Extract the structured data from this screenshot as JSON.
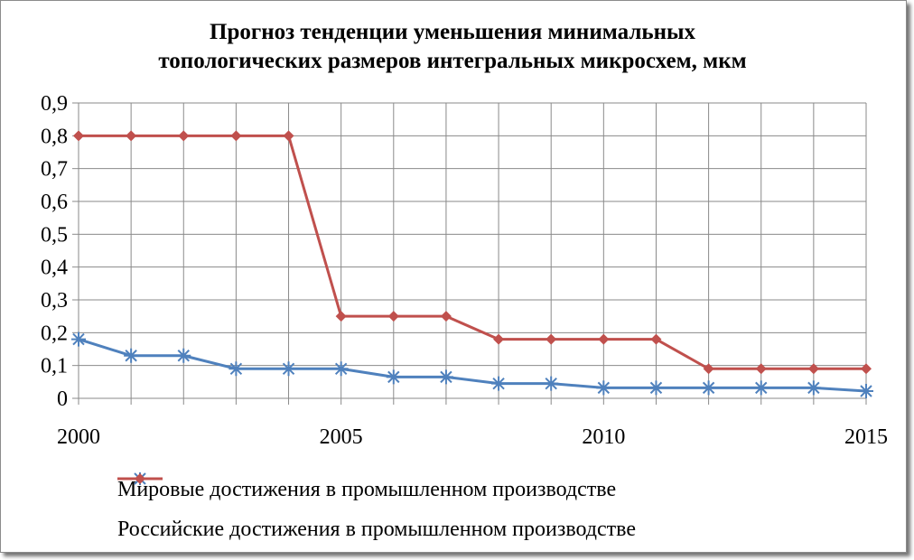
{
  "chart_data": {
    "type": "line",
    "title_lines": [
      "Прогноз тенденции уменьшения минимальных",
      "топологических размеров интегральных микросхем, мкм"
    ],
    "x": [
      2000,
      2001,
      2002,
      2003,
      2004,
      2005,
      2006,
      2007,
      2008,
      2009,
      2010,
      2011,
      2012,
      2013,
      2014,
      2015
    ],
    "x_tick_labels": [
      "2000",
      "2005",
      "2010",
      "2015"
    ],
    "y_tick_labels": [
      "0",
      "0,1",
      "0,2",
      "0,3",
      "0,4",
      "0,5",
      "0,6",
      "0,7",
      "0,8",
      "0,9"
    ],
    "ylim": [
      0,
      0.9
    ],
    "xlim": [
      2000,
      2015
    ],
    "grid": true,
    "legend_position": "bottom",
    "series": [
      {
        "name": "Мировые достижения в промышленном производстве",
        "color": "#4f81bd",
        "marker": "asterisk",
        "values": [
          0.18,
          0.13,
          0.13,
          0.09,
          0.09,
          0.09,
          0.065,
          0.065,
          0.045,
          0.045,
          0.032,
          0.032,
          0.032,
          0.032,
          0.032,
          0.022
        ]
      },
      {
        "name": "Российские достижения в промышленном производстве",
        "color": "#c0504d",
        "marker": "diamond",
        "values": [
          0.8,
          0.8,
          0.8,
          0.8,
          0.8,
          0.25,
          0.25,
          0.25,
          0.18,
          0.18,
          0.18,
          0.18,
          0.09,
          0.09,
          0.09,
          0.09
        ]
      }
    ]
  }
}
